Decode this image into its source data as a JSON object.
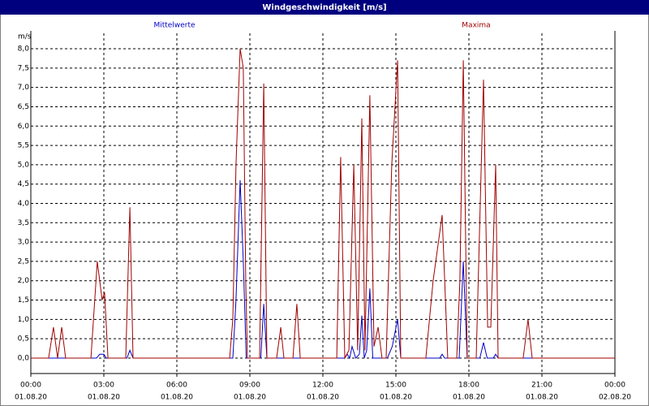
{
  "chart_data": {
    "type": "line",
    "title": "Windgeschwindigkeit [m/s]",
    "y_label": "m/s",
    "xlim": [
      0,
      24
    ],
    "ylim": [
      -0.4,
      8.4
    ],
    "xticks": [
      {
        "value": 0,
        "label": "00:00"
      },
      {
        "value": 3,
        "label": "03:00"
      },
      {
        "value": 6,
        "label": "06:00"
      },
      {
        "value": 9,
        "label": "09:00"
      },
      {
        "value": 12,
        "label": "12:00"
      },
      {
        "value": 15,
        "label": "15:00"
      },
      {
        "value": 18,
        "label": "18:00"
      },
      {
        "value": 21,
        "label": "21:00"
      },
      {
        "value": 24,
        "label": "00:00"
      }
    ],
    "xtick_dates": [
      "01.08.20",
      "01.08.20",
      "01.08.20",
      "01.08.20",
      "01.08.20",
      "01.08.20",
      "01.08.20",
      "01.08.20",
      "02.08.20"
    ],
    "yticks": [
      {
        "value": 0,
        "label": "0,0"
      },
      {
        "value": 0.5,
        "label": "0,5"
      },
      {
        "value": 1,
        "label": "1,0"
      },
      {
        "value": 1.5,
        "label": "1,5"
      },
      {
        "value": 2,
        "label": "2,0"
      },
      {
        "value": 2.5,
        "label": "2,5"
      },
      {
        "value": 3,
        "label": "3,0"
      },
      {
        "value": 3.5,
        "label": "3,5"
      },
      {
        "value": 4,
        "label": "4,0"
      },
      {
        "value": 4.5,
        "label": "4,5"
      },
      {
        "value": 5,
        "label": "5,0"
      },
      {
        "value": 5.5,
        "label": "5,5"
      },
      {
        "value": 6,
        "label": "6,0"
      },
      {
        "value": 6.5,
        "label": "6,5"
      },
      {
        "value": 7,
        "label": "7,0"
      },
      {
        "value": 7.5,
        "label": "7,5"
      },
      {
        "value": 8,
        "label": "8,0"
      }
    ],
    "grid": true,
    "series": [
      {
        "name": "Mittelwerte",
        "color": "#0000c8",
        "x": [
          0,
          2.7,
          2.83,
          3.0,
          3.1,
          3.95,
          4.07,
          4.2,
          8.3,
          8.43,
          8.6,
          8.73,
          8.85,
          9.45,
          9.57,
          9.7,
          12.9,
          13.0,
          13.1,
          13.2,
          13.35,
          13.5,
          13.6,
          13.7,
          13.8,
          13.93,
          14.05,
          14.65,
          14.85,
          15.07,
          15.2,
          16.8,
          16.9,
          17.0,
          17.6,
          17.77,
          17.93,
          18.45,
          18.6,
          18.75,
          19.0,
          19.1,
          19.2,
          24
        ],
        "values": [
          0,
          0,
          0.1,
          0.1,
          0,
          0,
          0.2,
          0,
          0,
          1.5,
          4.6,
          2.5,
          0,
          0,
          1.4,
          0,
          0,
          0.1,
          0,
          0.3,
          0,
          0.1,
          1.1,
          0,
          0.2,
          1.8,
          0,
          0,
          0.3,
          1.0,
          0,
          0,
          0.1,
          0,
          0,
          2.5,
          0,
          0,
          0.4,
          0,
          0,
          0.1,
          0,
          0
        ]
      },
      {
        "name": "Maxima",
        "color": "#a00000",
        "x": [
          0,
          0.73,
          0.93,
          1.1,
          1.27,
          1.43,
          2.47,
          2.73,
          2.93,
          3.03,
          3.17,
          3.9,
          4.07,
          4.2,
          8.17,
          8.3,
          8.43,
          8.6,
          8.73,
          8.83,
          8.9,
          9.4,
          9.57,
          9.7,
          10.1,
          10.27,
          10.4,
          10.77,
          10.93,
          11.07,
          12.57,
          12.73,
          12.9,
          13.07,
          13.27,
          13.43,
          13.6,
          13.73,
          13.93,
          14.1,
          14.27,
          14.43,
          14.6,
          14.83,
          15.07,
          15.2,
          16.23,
          16.53,
          16.9,
          17.13,
          17.5,
          17.63,
          17.77,
          17.93,
          18.3,
          18.6,
          18.77,
          18.9,
          19.1,
          19.2,
          20.23,
          20.43,
          20.6,
          24
        ],
        "values": [
          0,
          0,
          0.8,
          0,
          0.8,
          0,
          0,
          2.5,
          1.5,
          1.7,
          0,
          0,
          3.9,
          0,
          0,
          1.0,
          5.0,
          8.0,
          7.5,
          2.0,
          0,
          0,
          7.1,
          0,
          0,
          0.8,
          0,
          0,
          1.4,
          0,
          0,
          5.2,
          0,
          0.2,
          5.0,
          0.2,
          6.2,
          0.2,
          6.8,
          0.3,
          0.8,
          0,
          0,
          5.0,
          7.7,
          0,
          0,
          2.0,
          3.7,
          0,
          0,
          2.0,
          7.7,
          0,
          0,
          7.2,
          0.8,
          0.8,
          5.0,
          0,
          0,
          1.0,
          0,
          0
        ]
      }
    ]
  }
}
